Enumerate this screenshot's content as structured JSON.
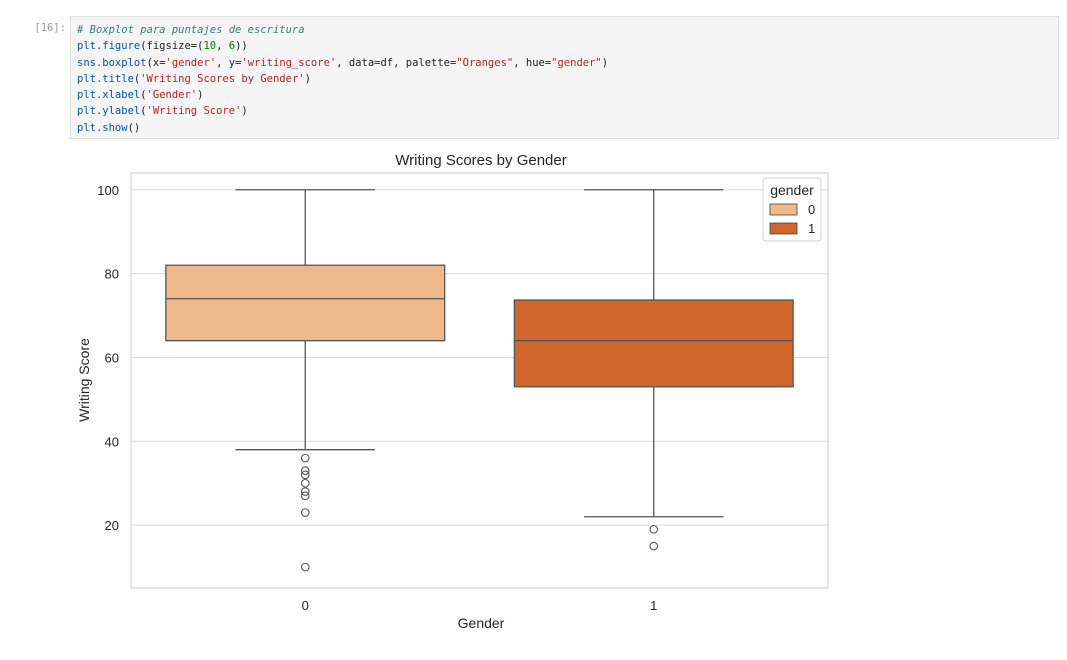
{
  "cell": {
    "prompt": "[16]:",
    "code_lines": [
      "# Boxplot para puntajes de escritura",
      "plt.figure(figsize=(10, 6))",
      "sns.boxplot(x='gender', y='writing_score', data=df, palette=\"Oranges\", hue=\"gender\")",
      "plt.title('Writing Scores by Gender')",
      "plt.xlabel('Gender')",
      "plt.ylabel('Writing Score')",
      "plt.show()"
    ]
  },
  "chart_data": {
    "type": "box",
    "title": "Writing Scores by Gender",
    "xlabel": "Gender",
    "ylabel": "Writing Score",
    "categories": [
      "0",
      "1"
    ],
    "ylim": [
      5,
      104
    ],
    "yticks": [
      20,
      40,
      60,
      80,
      100
    ],
    "grid": true,
    "legend": {
      "title": "gender",
      "placement": "top-right",
      "entries": [
        "0",
        "1"
      ]
    },
    "series": [
      {
        "name": "0",
        "color": "#edb98a",
        "whisker_low": 38,
        "q1": 64,
        "median": 74,
        "q3": 82,
        "whisker_high": 100,
        "outliers": [
          36,
          33,
          32,
          30,
          28,
          27,
          23,
          10
        ]
      },
      {
        "name": "1",
        "color": "#d0662b",
        "whisker_low": 22,
        "q1": 53,
        "median": 64,
        "q3": 73.7,
        "whisker_high": 100,
        "outliers": [
          19,
          15
        ]
      }
    ]
  }
}
